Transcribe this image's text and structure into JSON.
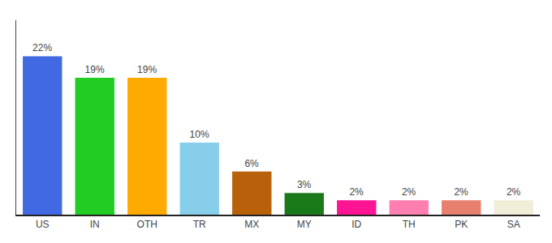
{
  "chart_data": {
    "type": "bar",
    "categories": [
      "US",
      "IN",
      "OTH",
      "TR",
      "MX",
      "MY",
      "ID",
      "TH",
      "PK",
      "SA"
    ],
    "values": [
      22,
      19,
      19,
      10,
      6,
      3,
      2,
      2,
      2,
      2
    ],
    "value_labels": [
      "22%",
      "19%",
      "19%",
      "10%",
      "6%",
      "3%",
      "2%",
      "2%",
      "2%",
      "2%"
    ],
    "colors": [
      "#4169e1",
      "#22cc22",
      "#ffaa00",
      "#87ceeb",
      "#b8600a",
      "#1a7a1a",
      "#ff1493",
      "#ff80b0",
      "#e88070",
      "#f0edd8"
    ],
    "ylim": [
      0,
      27
    ],
    "data_labels": true,
    "tick_labels": "x",
    "grid": false
  }
}
